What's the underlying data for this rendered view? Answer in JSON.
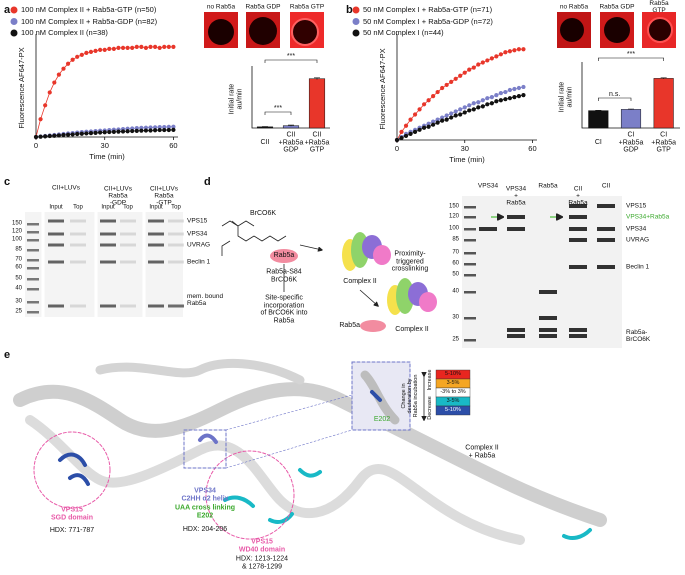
{
  "panel_letters": [
    "a",
    "b",
    "c",
    "d",
    "e"
  ],
  "images_a": [
    "no Rab5a",
    "Rab5a GDP",
    "Rab5a GTP"
  ],
  "images_b": [
    "no Rab5a",
    "Rab5a GDP",
    "Rab5a GTP"
  ],
  "chart_data": [
    {
      "type": "line",
      "xlabel": "Time (min)",
      "ylabel": "Fluorescence AF647-PX",
      "x": [
        0,
        2,
        4,
        6,
        8,
        10,
        12,
        14,
        16,
        18,
        20,
        22,
        24,
        26,
        28,
        30,
        32,
        34,
        36,
        38,
        40,
        42,
        44,
        46,
        48,
        50,
        52,
        54,
        56,
        58,
        60
      ],
      "xlim": [
        0,
        62
      ],
      "xticks": [
        0,
        30,
        60
      ],
      "ylim": [
        0,
        100
      ],
      "series": [
        {
          "name": "100 nM Complex II + Rab5a-GTP (n=50)",
          "color": "#e8362a",
          "values": [
            0,
            18,
            32,
            45,
            55,
            63,
            69,
            74,
            78,
            81,
            83,
            85,
            86,
            87,
            88,
            88,
            89,
            89,
            90,
            90,
            90,
            90,
            91,
            91,
            90,
            91,
            91,
            90,
            91,
            91,
            91
          ]
        },
        {
          "name": "100 nM Complex II + Rab5a-GDP (n=82)",
          "color": "#7b7fc8",
          "values": [
            0,
            0.5,
            1,
            1.5,
            2,
            2.5,
            3,
            3.5,
            4,
            4.5,
            5,
            5.3,
            5.6,
            6,
            6.3,
            6.6,
            7,
            7.3,
            7.6,
            8,
            8.3,
            8.6,
            9,
            9.2,
            9.4,
            9.6,
            9.8,
            10,
            10,
            10.2,
            10.4
          ]
        },
        {
          "name": "100 nM Complex II (n=38)",
          "color": "#111111",
          "values": [
            0,
            0.3,
            0.6,
            1,
            1.3,
            1.6,
            2,
            2.3,
            2.6,
            3,
            3.3,
            3.6,
            3.9,
            4.2,
            4.5,
            4.8,
            5,
            5.2,
            5.4,
            5.6,
            5.8,
            6,
            6.2,
            6.4,
            6.5,
            6.6,
            6.8,
            7,
            7,
            7.1,
            7.2
          ]
        }
      ]
    },
    {
      "type": "bar",
      "ylabel": "Initial rate au/min",
      "categories": [
        "CII",
        "CII\n+Rab5a\nGDP",
        "CII\n+Rab5a\nGTP"
      ],
      "values": [
        0.02,
        0.04,
        0.85
      ],
      "errors": [
        0.005,
        0.01,
        0.015
      ],
      "colors": [
        "#111111",
        "#7b7fc8",
        "#e8362a"
      ],
      "ylim": [
        0,
        1
      ],
      "annotations": [
        "***",
        "***"
      ]
    },
    {
      "type": "line",
      "xlabel": "Time (min)",
      "ylabel": "Fluorescence AF647-PX",
      "x": [
        0,
        2,
        4,
        6,
        8,
        10,
        12,
        14,
        16,
        18,
        20,
        22,
        24,
        26,
        28,
        30,
        32,
        34,
        36,
        38,
        40,
        42,
        44,
        46,
        48,
        50,
        52,
        54,
        56
      ],
      "xlim": [
        0,
        62
      ],
      "xticks": [
        0,
        30,
        60
      ],
      "ylim": [
        0,
        100
      ],
      "series": [
        {
          "name": "50 nM Complex I + Rab5a-GTP (n=71)",
          "color": "#e8362a",
          "values": [
            0,
            8,
            14,
            20,
            25,
            30,
            35,
            39,
            43,
            47,
            51,
            54,
            57,
            60,
            63,
            66,
            69,
            71,
            74,
            76,
            78,
            80,
            82,
            84,
            86,
            87,
            88,
            89,
            89
          ]
        },
        {
          "name": "50 nM Complex I + Rab5a-GDP (n=72)",
          "color": "#7b7fc8",
          "values": [
            0,
            3,
            6,
            8,
            10,
            12,
            14,
            16,
            18,
            20,
            22,
            24,
            26,
            28,
            30,
            32,
            34,
            36,
            37,
            39,
            41,
            42,
            44,
            46,
            47,
            49,
            50,
            51,
            52
          ]
        },
        {
          "name": "50 nM Complex I (n=44)",
          "color": "#111111",
          "values": [
            0,
            2,
            4,
            6,
            8,
            10,
            12,
            13,
            15,
            17,
            19,
            20,
            22,
            24,
            25,
            27,
            29,
            30,
            32,
            33,
            35,
            36,
            38,
            39,
            40,
            41,
            42,
            43,
            44
          ]
        }
      ]
    },
    {
      "type": "bar",
      "ylabel": "Initial rate au/min",
      "categories": [
        "CI",
        "CI\n+Rab5a\nGDP",
        "CI\n+Rab5a\nGTP"
      ],
      "values": [
        0.28,
        0.3,
        0.8
      ],
      "errors": [
        0.005,
        0.005,
        0.01
      ],
      "colors": [
        "#111111",
        "#7b7fc8",
        "#e8362a"
      ],
      "ylim": [
        0,
        1
      ],
      "annotations": [
        "n.s.",
        "***"
      ]
    }
  ],
  "gel_c": {
    "headers": [
      "CII+LUVs",
      "CII+LUVs\nRab5a\n-GDP",
      "CII+LUVs\nRab5a\n-GTP"
    ],
    "lanes": [
      "Input",
      "Top",
      "Input",
      "Top",
      "Input",
      "Top"
    ],
    "markers": [
      "150",
      "120",
      "100",
      "85",
      "70",
      "60",
      "50",
      "40",
      "30",
      "25"
    ],
    "bands": [
      "VPS15",
      "VPS34",
      "UVRAG",
      "Beclin 1",
      "mem. bound\nRab5a"
    ]
  },
  "scheme_d": {
    "labels": [
      "BrCO6K",
      "Rab5a",
      "Rab5a-S84\nBrCO6K",
      "Site-specific\nincorporation\nof BrCO6K into\nRab5a",
      "Complex II",
      "Proximity-\ntriggered\ncrosslinking",
      "Rab5a",
      "Complex II"
    ]
  },
  "gel_d": {
    "lanes": [
      "VPS34",
      "VPS34\n+\nRab5a",
      "Rab5a",
      "CII\n+\nRab5a",
      "CII"
    ],
    "markers": [
      "150",
      "120",
      "100",
      "85",
      "70",
      "60",
      "50",
      "40",
      "30",
      "25"
    ],
    "bands": [
      "VPS15",
      "VPS34+Rab5a",
      "VPS34",
      "UVRAG",
      "Beclin 1",
      "Rab5a-\nBrCO6K"
    ]
  },
  "structure_e": {
    "inset": "E202",
    "scale": [
      "5-10%",
      "3-5%",
      "-3% to 3%",
      "3-5%",
      "5-10%"
    ],
    "scale_title": "Change in\ndeuteration by\nRab5a incubation",
    "increase": "Increase",
    "decrease": "Decrease",
    "complex": "Complex II\n+ Rab5a",
    "regions": [
      "VPS15\nSGD domain",
      "HDX: 771-787",
      "VPS34\nC2HH α2 helix",
      "UAA cross linking\nE202",
      "HDX: 204-206",
      "VPS15\nWD40 domain",
      "HDX: 1213-1224\n& 1278-1299"
    ]
  }
}
